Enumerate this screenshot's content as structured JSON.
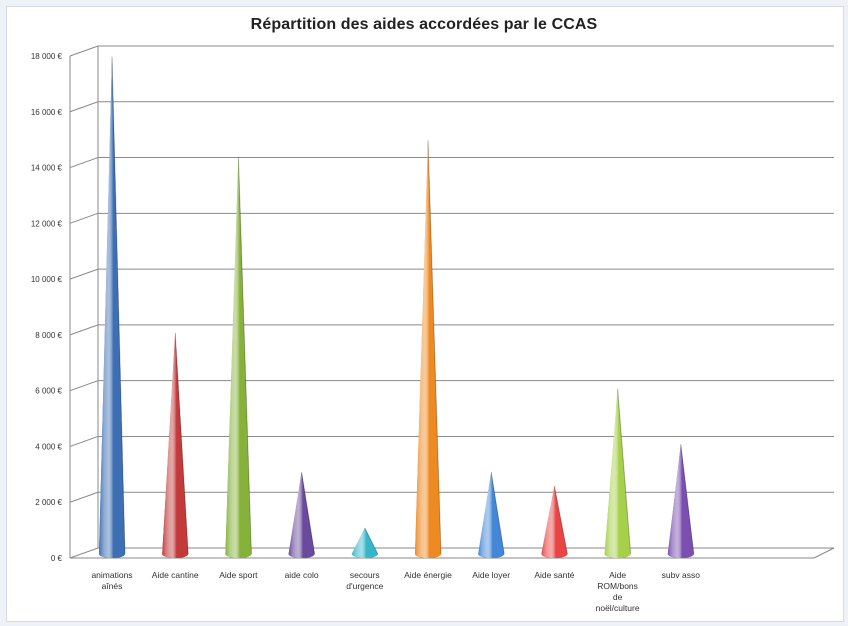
{
  "chart_data": {
    "type": "bar",
    "title": "Répartition des aides accordées par le CCAS",
    "xlabel": "",
    "ylabel": "",
    "ylim": [
      0,
      18000
    ],
    "y_ticks": [
      "0 €",
      "2 000 €",
      "4 000 €",
      "6 000 €",
      "8 000 €",
      "10 000 €",
      "12 000 €",
      "14 000 €",
      "16 000 €",
      "18 000 €"
    ],
    "categories": [
      "animations aînés",
      "Aide cantine",
      "Aide sport",
      "aide colo",
      "secours d'urgence",
      "Aide énergie",
      "Aide loyer",
      "Aide santé",
      "Aide ROM/bons de noël/culture",
      "subv asso"
    ],
    "category_lines": [
      [
        "animations",
        "aînés"
      ],
      [
        "Aide cantine"
      ],
      [
        "Aide sport"
      ],
      [
        "aide colo"
      ],
      [
        "secours",
        "d'urgence"
      ],
      [
        "Aide énergie"
      ],
      [
        "Aide loyer"
      ],
      [
        "Aide santé"
      ],
      [
        "Aide",
        "ROM/bons",
        "de",
        "noël/culture"
      ],
      [
        "subv asso"
      ]
    ],
    "values": [
      17800,
      7900,
      14200,
      2900,
      900,
      14800,
      2900,
      2400,
      5900,
      3900
    ],
    "colors": [
      "#3e6fb4",
      "#c23a3a",
      "#86b23c",
      "#6a4a9c",
      "#35b6c9",
      "#ee8a22",
      "#4487d6",
      "#e84545",
      "#a6cf4a",
      "#7a4fb0"
    ],
    "shape": "cone",
    "grid": true,
    "legend": "none"
  }
}
